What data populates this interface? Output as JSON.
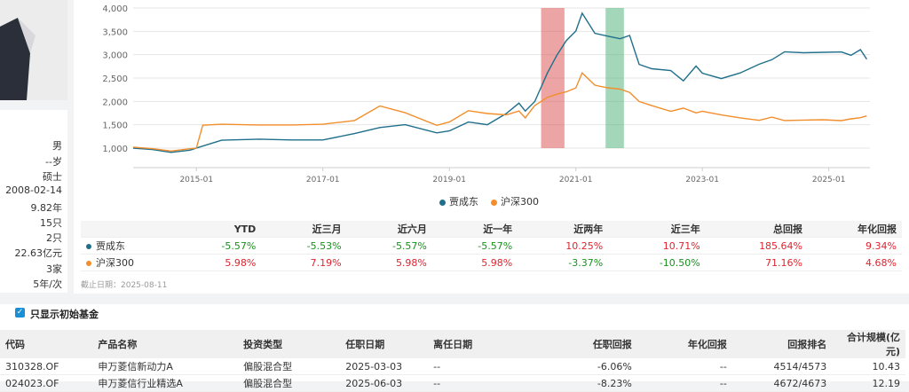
{
  "manager": {
    "info": [
      "男",
      "--岁",
      "硕士",
      "2008-02-14",
      "9.82年",
      "15只",
      "2只",
      "22.63亿元",
      "3家",
      "5年/次"
    ]
  },
  "chart_data": {
    "type": "line",
    "x_ticks": [
      "2015-01",
      "2017-01",
      "2019-01",
      "2021-01",
      "2023-01",
      "2025-01"
    ],
    "y_ticks": [
      "1,000",
      "1,500",
      "2,000",
      "2,500",
      "3,000",
      "3,500",
      "4,000"
    ],
    "ylim": [
      1000,
      4000
    ],
    "xlim": [
      2014.0,
      2025.65
    ],
    "series": [
      {
        "name": "贾成东",
        "color": "#1f6f8b",
        "x": [
          2014.0,
          2014.3,
          2014.6,
          2014.9,
          2015.0,
          2015.4,
          2016.0,
          2016.5,
          2017.0,
          2017.5,
          2017.9,
          2018.3,
          2018.8,
          2019.0,
          2019.3,
          2019.6,
          2019.9,
          2020.1,
          2020.2,
          2020.35,
          2020.55,
          2020.7,
          2020.85,
          2021.0,
          2021.1,
          2021.3,
          2021.5,
          2021.7,
          2021.85,
          2022.0,
          2022.2,
          2022.5,
          2022.7,
          2022.9,
          2023.0,
          2023.3,
          2023.6,
          2023.9,
          2024.1,
          2024.3,
          2024.6,
          2024.9,
          2025.2,
          2025.35,
          2025.5,
          2025.6
        ],
        "y": [
          1000,
          960,
          920,
          950,
          1000,
          1180,
          1180,
          1180,
          1180,
          1300,
          1450,
          1500,
          1320,
          1380,
          1550,
          1500,
          1750,
          1950,
          1800,
          2000,
          2600,
          3000,
          3300,
          3500,
          3900,
          3450,
          3400,
          3350,
          3400,
          2800,
          2700,
          2650,
          2450,
          2750,
          2600,
          2500,
          2600,
          2800,
          2900,
          3050,
          3050,
          3050,
          3050,
          3000,
          3100,
          2900
        ]
      },
      {
        "name": "沪深300",
        "color": "#f28e2b",
        "x": [
          2014.0,
          2014.3,
          2014.6,
          2014.9,
          2015.0,
          2015.1,
          2015.4,
          2016.0,
          2016.5,
          2017.0,
          2017.5,
          2017.9,
          2018.3,
          2018.8,
          2019.0,
          2019.3,
          2019.6,
          2019.9,
          2020.1,
          2020.2,
          2020.35,
          2020.55,
          2020.7,
          2020.85,
          2021.0,
          2021.1,
          2021.3,
          2021.5,
          2021.7,
          2021.85,
          2022.0,
          2022.2,
          2022.5,
          2022.7,
          2022.9,
          2023.0,
          2023.3,
          2023.6,
          2023.9,
          2024.1,
          2024.3,
          2024.6,
          2024.9,
          2025.2,
          2025.35,
          2025.5,
          2025.6
        ],
        "y": [
          1020,
          980,
          950,
          980,
          1000,
          1500,
          1500,
          1500,
          1500,
          1500,
          1600,
          1900,
          1750,
          1500,
          1550,
          1800,
          1750,
          1700,
          1800,
          1650,
          1900,
          2100,
          2150,
          2200,
          2300,
          2600,
          2350,
          2300,
          2250,
          2200,
          2000,
          1900,
          1800,
          1850,
          1750,
          1800,
          1700,
          1650,
          1600,
          1650,
          1600,
          1600,
          1600,
          1600,
          1620,
          1650,
          1700
        ]
      }
    ],
    "shaded": [
      {
        "x0": 2020.45,
        "x1": 2020.82,
        "color": "rgba(220,90,90,0.55)"
      },
      {
        "x0": 2021.47,
        "x1": 2021.76,
        "color": "rgba(90,180,130,0.55)"
      }
    ]
  },
  "legend": [
    "贾成东",
    "沪深300"
  ],
  "perf_table": {
    "headers": [
      "",
      "YTD",
      "近三月",
      "近六月",
      "近一年",
      "近两年",
      "近三年",
      "总回报",
      "年化回报"
    ],
    "rows": [
      {
        "name": "贾成东",
        "dot": "#1f6f8b",
        "values": [
          "-5.57%",
          "-5.53%",
          "-5.57%",
          "-5.57%",
          "10.25%",
          "10.71%",
          "185.64%",
          "9.34%"
        ],
        "signs": [
          "n",
          "n",
          "n",
          "n",
          "p",
          "p",
          "p",
          "p"
        ]
      },
      {
        "name": "沪深300",
        "dot": "#f28e2b",
        "values": [
          "5.98%",
          "7.19%",
          "5.98%",
          "5.98%",
          "-3.37%",
          "-10.50%",
          "71.16%",
          "4.68%"
        ],
        "signs": [
          "p",
          "p",
          "p",
          "p",
          "n",
          "n",
          "p",
          "p"
        ]
      }
    ]
  },
  "cutoff": "截止日期：2025-08-11",
  "filter": {
    "label": "只显示初始基金",
    "checked": "✓"
  },
  "fund_table": {
    "headers": [
      "代码",
      "产品名称",
      "投资类型",
      "任职日期",
      "离任日期",
      "任职回报",
      "年化回报",
      "回报排名",
      "合计规模(亿元)"
    ],
    "rows": [
      [
        "310328.OF",
        "申万菱信新动力A",
        "偏股混合型",
        "2025-03-03",
        "--",
        "-6.06%",
        "--",
        "4514/4573",
        "10.43"
      ],
      [
        "024023.OF",
        "申万菱信行业精选A",
        "偏股混合型",
        "2025-06-03",
        "--",
        "-8.23%",
        "--",
        "4672/4673",
        "12.19"
      ]
    ]
  }
}
